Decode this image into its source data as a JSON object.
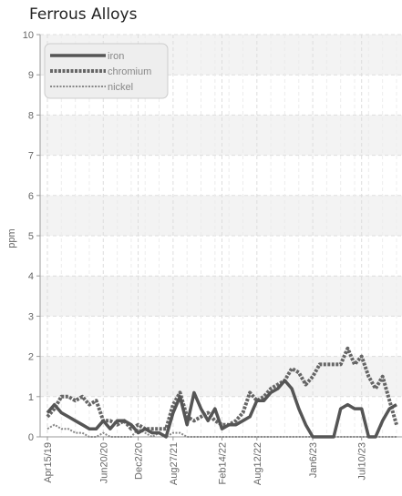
{
  "chart_data": {
    "type": "line",
    "title": "Ferrous Alloys",
    "xlabel": "",
    "ylabel": "ppm",
    "ylim": [
      0,
      10
    ],
    "yticks": [
      "0",
      "1",
      "2",
      "3",
      "4",
      "5",
      "6",
      "7",
      "8",
      "9",
      "10"
    ],
    "xtick_labels": [
      "Apr15/19",
      "Jun20/20",
      "Dec2/20",
      "Aug27/21",
      "Feb14/22",
      "Aug12/22",
      "Jan6/23",
      "Jul10/23"
    ],
    "grid": true,
    "legend_position": "top-left",
    "colors": {
      "iron": "#555555",
      "chromium": "#666666",
      "nickel": "#888888"
    },
    "x": [
      "Apr15/19",
      "",
      "",
      "",
      "",
      "",
      "",
      "",
      "Jun20/20",
      "",
      "",
      "",
      "",
      "Dec2/20",
      "",
      "",
      "",
      "",
      "Aug27/21",
      "",
      "",
      "",
      "",
      "",
      "",
      "Feb14/22",
      "",
      "",
      "",
      "",
      "Aug12/22",
      "",
      "",
      "",
      "",
      "",
      "",
      "",
      "Jan6/23",
      "",
      "",
      "",
      "",
      "",
      "",
      "Jul10/23",
      "",
      "",
      "",
      "",
      ""
    ],
    "series": [
      {
        "name": "iron",
        "values": [
          0.6,
          0.8,
          0.6,
          0.5,
          0.4,
          0.3,
          0.2,
          0.2,
          0.4,
          0.2,
          0.4,
          0.4,
          0.3,
          0.1,
          0.2,
          0.1,
          0.1,
          0.0,
          0.6,
          1.0,
          0.3,
          1.1,
          0.7,
          0.4,
          0.7,
          0.2,
          0.3,
          0.3,
          0.4,
          0.5,
          0.9,
          0.9,
          1.1,
          1.2,
          1.4,
          1.2,
          0.7,
          0.3,
          0.0,
          0.0,
          0.0,
          0.0,
          0.7,
          0.8,
          0.7,
          0.7,
          0.0,
          0.0,
          0.4,
          0.7,
          0.8
        ]
      },
      {
        "name": "chromium",
        "values": [
          0.5,
          0.7,
          1.0,
          1.0,
          0.9,
          1.0,
          0.8,
          0.9,
          0.4,
          0.4,
          0.3,
          0.4,
          0.2,
          0.3,
          0.2,
          0.2,
          0.2,
          0.2,
          0.8,
          1.1,
          0.5,
          0.4,
          0.5,
          0.6,
          0.4,
          0.3,
          0.3,
          0.4,
          0.6,
          1.1,
          0.9,
          1.0,
          1.2,
          1.3,
          1.4,
          1.7,
          1.6,
          1.3,
          1.5,
          1.8,
          1.8,
          1.8,
          1.8,
          2.2,
          1.8,
          2.0,
          1.5,
          1.2,
          1.5,
          0.9,
          0.3
        ]
      },
      {
        "name": "nickel",
        "values": [
          0.2,
          0.3,
          0.2,
          0.2,
          0.1,
          0.1,
          0.0,
          0.0,
          0.1,
          0.0,
          0.0,
          0.0,
          0.0,
          0.2,
          0.1,
          0.0,
          0.1,
          0.0,
          0.1,
          0.1,
          0.0,
          0.0,
          0.0,
          0.0,
          0.0,
          0.0,
          0.0,
          0.0,
          0.0,
          0.0,
          0.0,
          0.0,
          0.0,
          0.0,
          0.0,
          0.0,
          0.0,
          0.0,
          0.0,
          0.0,
          0.0,
          0.0,
          0.0,
          0.0,
          0.0,
          0.0,
          0.0,
          0.0,
          0.0,
          0.0,
          0.0
        ]
      }
    ]
  }
}
